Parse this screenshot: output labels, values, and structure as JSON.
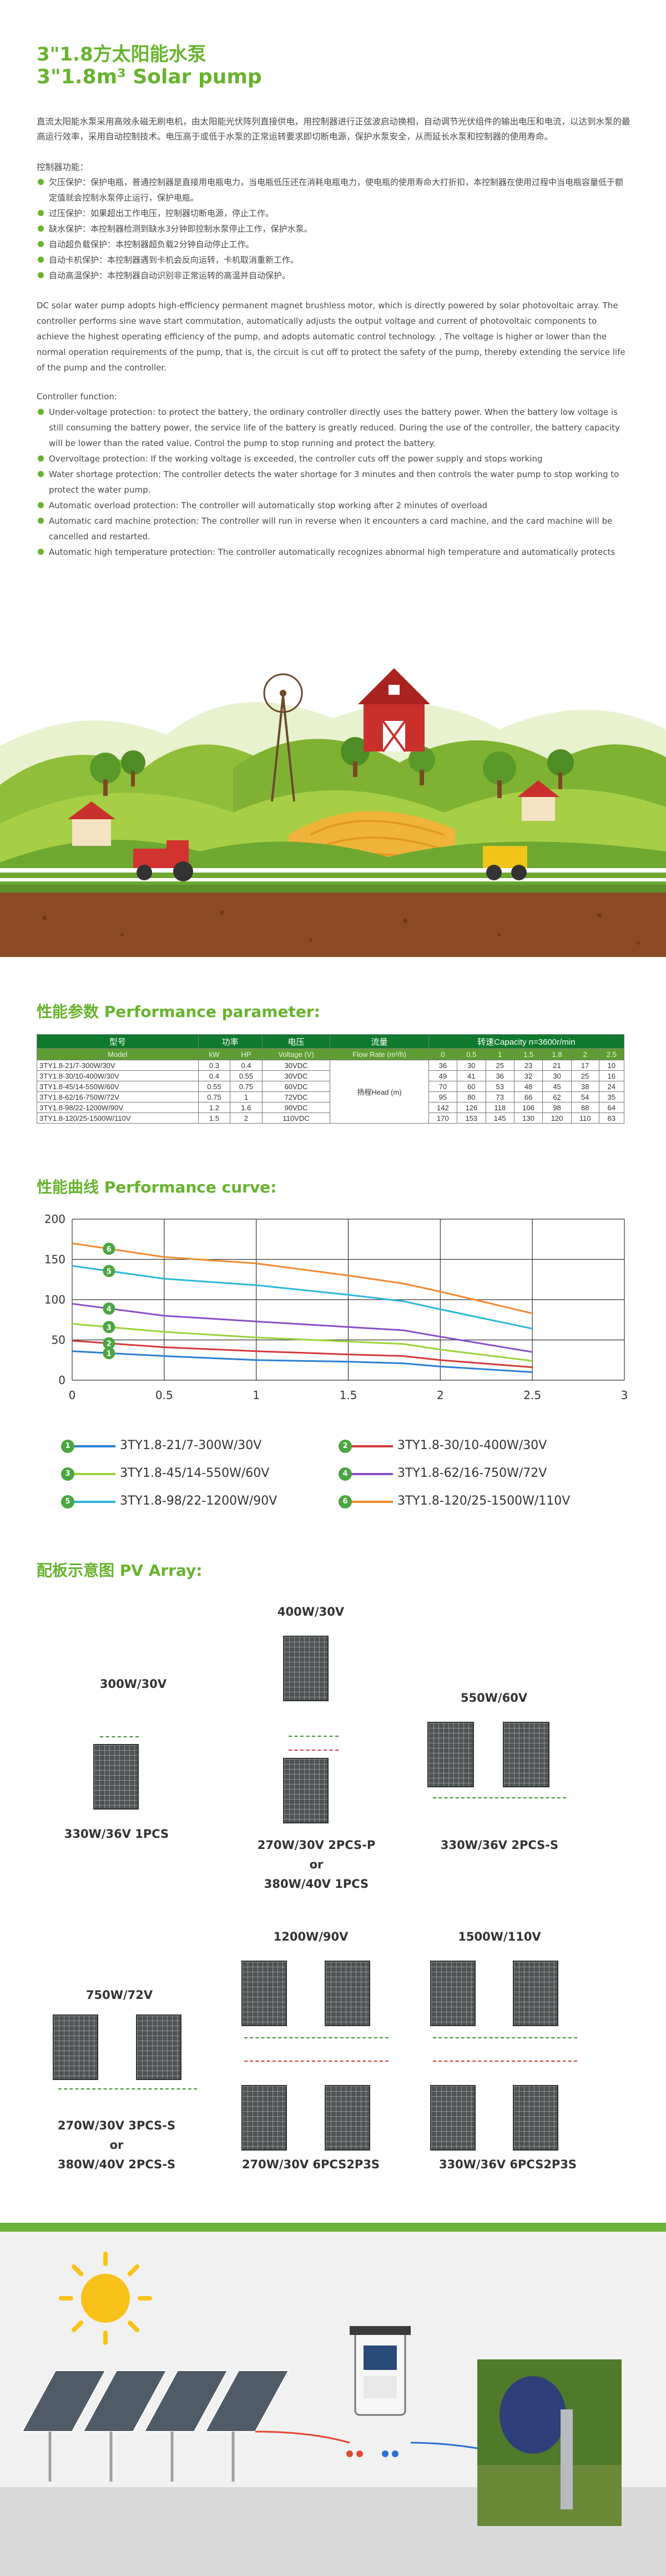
{
  "header": {
    "title_cn": "3\"1.8方太阳能水泵",
    "title_en": "3\"1.8m³ Solar pump"
  },
  "intro_cn": "直流太阳能水泵采用高效永磁无刷电机，由太阳能光伏阵列直接供电，用控制器进行正弦波启动换相，自动调节光伏组件的输出电压和电流，以达到水泵的最高运行效率，采用自动控制技术。电压高于或低于水泵的正常运转要求即切断电源，保护水泵安全，从而延长水泵和控制器的使用寿命。",
  "controller_cn": {
    "title": "控制器功能：",
    "items": [
      "欠压保护：保护电瓶，普通控制器是直接用电瓶电力，当电瓶低压还在消耗电瓶电力，使电瓶的使用寿命大打折扣，本控制器在使用过程中当电瓶容量低于额定值就会控制水泵停止运行，保护电瓶。",
      "过压保护：如果超出工作电压，控制器切断电源，停止工作。",
      "缺水保护：本控制器检测到缺水3分钟即控制水泵停止工作，保护水泵。",
      "自动超负载保护：本控制器超负载2分钟自动停止工作。",
      "自动卡机保护：本控制器遇到卡机会反向运转，卡机取消重新工作。",
      "自动高温保护：本控制器自动识别非正常运转的高温并自动保护。"
    ]
  },
  "intro_en": "DC solar water pump adopts high-efficiency permanent magnet brushless motor, which is directly powered by solar photovoltaic array. The controller performs sine wave start commutation, automatically adjusts the output voltage and current of photovoltaic components to achieve the highest operating efficiency of the pump, and adopts automatic control technology. , The voltage is higher or lower than the normal operation requirements of the pump, that is, the circuit is cut off to protect the safety of the pump, thereby extending the service life of the pump and the controller.",
  "controller_en": {
    "title": "Controller function:",
    "items": [
      "Under-voltage protection: to protect the battery, the ordinary controller directly uses the battery power. When the battery low voltage is still consuming the battery power, the service life of the battery is greatly reduced. During the use of the controller, the battery capacity will be lower than the rated value. Control the pump to stop running and protect the battery.",
      "Overvoltage protection: If the working voltage is exceeded, the controller cuts off the power supply and stops working",
      "Water shortage protection: The controller detects the water shortage for 3 minutes and then controls the water pump to stop working to protect the water pump.",
      "Automatic overload protection: The controller will automatically stop working after 2 minutes of overload",
      "Automatic card machine protection: The controller will run in reverse when it encounters a card machine, and the card machine will be cancelled and restarted.",
      "Automatic high temperature protection: The controller automatically recognizes abnormal high temperature and automatically protects"
    ]
  },
  "performance": {
    "title": "性能参数 Performance parameter:",
    "headers": {
      "model": "型号",
      "power": "功率",
      "voltage": "电压",
      "flow": "流量",
      "speed": "转速Capacity n=3600r/min"
    },
    "subheaders": [
      "Model",
      "kW",
      "HP",
      "Voltage (V)",
      "Flow Rate (m³/h)",
      "0",
      "0.5",
      "1",
      "1.5",
      "1.8",
      "2",
      "2.5"
    ],
    "head_label": "扬程Head (m)",
    "rows": [
      {
        "model": "3TY1.8-21/7-300W/30V",
        "kw": "0.3",
        "hp": "0.4",
        "v": "30VDC",
        "h": [
          "36",
          "30",
          "25",
          "23",
          "21",
          "17",
          "10"
        ]
      },
      {
        "model": "3TY1.8-30/10-400W/30V",
        "kw": "0.4",
        "hp": "0.55",
        "v": "30VDC",
        "h": [
          "49",
          "41",
          "36",
          "32",
          "30",
          "25",
          "16"
        ]
      },
      {
        "model": "3TY1.8-45/14-550W/60V",
        "kw": "0.55",
        "hp": "0.75",
        "v": "60VDC",
        "h": [
          "70",
          "60",
          "53",
          "48",
          "45",
          "38",
          "24"
        ]
      },
      {
        "model": "3TY1.8-62/16-750W/72V",
        "kw": "0.75",
        "hp": "1",
        "v": "72VDC",
        "h": [
          "95",
          "80",
          "73",
          "66",
          "62",
          "54",
          "35"
        ]
      },
      {
        "model": "3TY1.8-98/22-1200W/90V",
        "kw": "1.2",
        "hp": "1.6",
        "v": "90VDC",
        "h": [
          "142",
          "126",
          "118",
          "106",
          "98",
          "88",
          "64"
        ]
      },
      {
        "model": "3TY1.8-120/25-1500W/110V",
        "kw": "1.5",
        "hp": "2",
        "v": "110VDC",
        "h": [
          "170",
          "153",
          "145",
          "130",
          "120",
          "110",
          "83"
        ]
      }
    ]
  },
  "curve_title": "性能曲线 Performance curve:",
  "chart_data": {
    "type": "line",
    "x_ticks": [
      "0",
      "0.5",
      "1",
      "1.5",
      "2",
      "2.5",
      "3"
    ],
    "y_ticks": [
      "0",
      "50",
      "100",
      "150",
      "200"
    ],
    "xlim": [
      0,
      3
    ],
    "ylim": [
      0,
      200
    ],
    "grid": true,
    "x": [
      0,
      0.5,
      1,
      1.5,
      1.8,
      2,
      2.5
    ],
    "series": [
      {
        "name": "3TY1.8-21/7-300W/30V",
        "num": "1",
        "color": "#2a7fd4",
        "values": [
          36,
          30,
          25,
          23,
          21,
          17,
          10
        ]
      },
      {
        "name": "3TY1.8-30/10-400W/30V",
        "num": "2",
        "color": "#d23a3a",
        "values": [
          49,
          41,
          36,
          32,
          30,
          25,
          16
        ]
      },
      {
        "name": "3TY1.8-45/14-550W/60V",
        "num": "3",
        "color": "#9ad33a",
        "values": [
          70,
          60,
          53,
          48,
          45,
          38,
          24
        ]
      },
      {
        "name": "3TY1.8-62/16-750W/72V",
        "num": "4",
        "color": "#8a4ec8",
        "values": [
          95,
          80,
          73,
          66,
          62,
          54,
          35
        ]
      },
      {
        "name": "3TY1.8-98/22-1200W/90V",
        "num": "5",
        "color": "#29b7d8",
        "values": [
          142,
          126,
          118,
          106,
          98,
          88,
          64
        ]
      },
      {
        "name": "3TY1.8-120/25-1500W/110V",
        "num": "6",
        "color": "#f08a2e",
        "values": [
          170,
          153,
          145,
          130,
          120,
          110,
          83
        ]
      }
    ]
  },
  "pv": {
    "title": "配板示意图 PV Array:",
    "groups": {
      "g300": {
        "top": "300W/30V",
        "bottom": "330W/36V 1PCS"
      },
      "g400": {
        "top": "400W/30V",
        "bottom1": "270W/30V 2PCS-P",
        "or": "or",
        "bottom2": "380W/40V 1PCS"
      },
      "g550": {
        "top": "550W/60V",
        "bottom": "330W/36V 2PCS-S"
      },
      "g750": {
        "top": "750W/72V",
        "bottom1": "270W/30V 3PCS-S",
        "or": "or",
        "bottom2": "380W/40V 2PCS-S"
      },
      "g1200": {
        "top": "1200W/90V",
        "bottom": "270W/30V 6PCS2P3S"
      },
      "g1500": {
        "top": "1500W/110V",
        "bottom": "330W/36V 6PCS2P3S"
      }
    }
  },
  "colors": {
    "accent": "#67b32e",
    "table_header": "#0f7a2e"
  }
}
